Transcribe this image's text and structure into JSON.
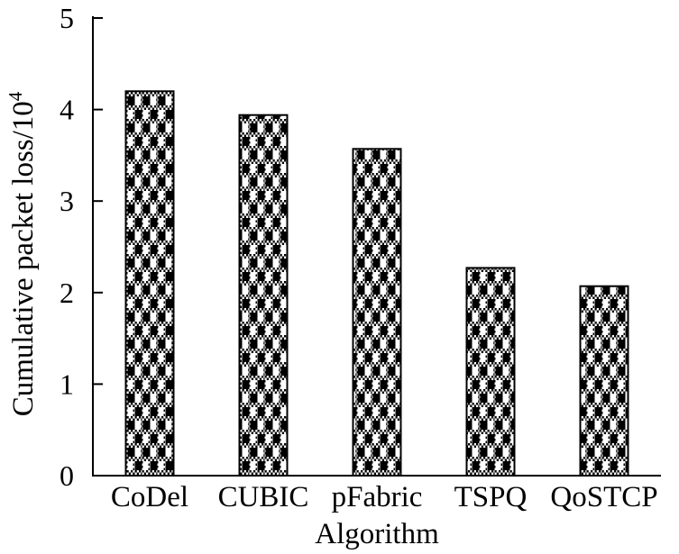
{
  "chart_data": {
    "type": "bar",
    "title": "",
    "categories": [
      "CoDel",
      "CUBIC",
      "pFabric",
      "TSPQ",
      "QoSTCP"
    ],
    "values": [
      4.2,
      3.94,
      3.57,
      2.27,
      2.07
    ],
    "series": [
      {
        "name": "Cumulative packet loss",
        "values": [
          4.2,
          3.94,
          3.57,
          2.27,
          2.07
        ]
      }
    ],
    "xlabel": "Algorithm",
    "ylabel": "Cumulative packet loss/10⁴",
    "ylabel_base": "Cumulative packet loss/10",
    "ylabel_superscript": "4",
    "ylim": [
      0,
      5
    ],
    "yticks": [
      "0",
      "1",
      "2",
      "3",
      "4",
      "5"
    ],
    "grid": false,
    "legend": null,
    "bar_fill": "black-white-checkerboard-pattern",
    "bar_outline_color": "#000000",
    "axis_color": "#000000",
    "background_color": "#ffffff",
    "text_color": "#000000"
  }
}
